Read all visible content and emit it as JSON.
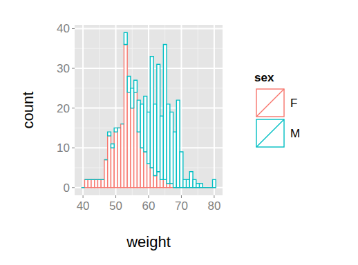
{
  "chart_data": {
    "type": "histogram",
    "stacked": true,
    "grid": true,
    "x_label": "weight",
    "y_label": "count",
    "legend_title": "sex",
    "legend": "right",
    "bins": [
      39.5,
      40.5,
      41.5,
      42.5,
      43.5,
      44.5,
      45.5,
      46.5,
      47.5,
      48.5,
      49.5,
      50.5,
      51.5,
      52.5,
      53.5,
      54.5,
      55.5,
      56.5,
      57.5,
      58.5,
      59.5,
      60.5,
      61.5,
      62.5,
      63.5,
      64.5,
      65.5,
      66.5,
      67.5,
      68.5,
      69.5,
      70.5,
      71.5,
      72.5,
      73.5,
      74.5,
      75.5,
      76.5,
      77.5,
      78.5,
      79.5,
      80.5
    ],
    "series": [
      {
        "name": "F",
        "color": "#F8766D",
        "values": [
          0,
          2,
          2,
          2,
          2,
          2,
          2,
          7,
          13,
          10,
          14,
          15,
          16,
          36,
          24,
          20,
          24,
          14,
          10,
          9,
          6,
          5,
          3,
          4,
          2,
          2,
          1,
          1,
          0,
          0,
          0,
          0,
          0,
          0,
          0,
          0,
          0,
          0,
          0,
          0,
          0
        ]
      },
      {
        "name": "M",
        "color": "#00BFC4",
        "values": [
          0,
          0,
          0,
          0,
          0,
          0,
          0,
          0,
          1,
          1,
          1,
          0,
          0,
          3,
          4,
          5,
          3,
          8,
          11,
          14,
          13,
          28,
          18,
          27,
          16,
          34,
          20,
          18,
          14,
          22,
          9,
          2,
          2,
          4,
          2,
          1,
          1,
          0,
          0,
          0,
          2
        ]
      }
    ],
    "xlim": [
      37.45,
      82.55
    ],
    "xticks": [
      40,
      50,
      60,
      70,
      80
    ],
    "ylim": [
      -1.95,
      40.95
    ],
    "yticks": [
      0,
      10,
      20,
      30,
      40
    ]
  }
}
